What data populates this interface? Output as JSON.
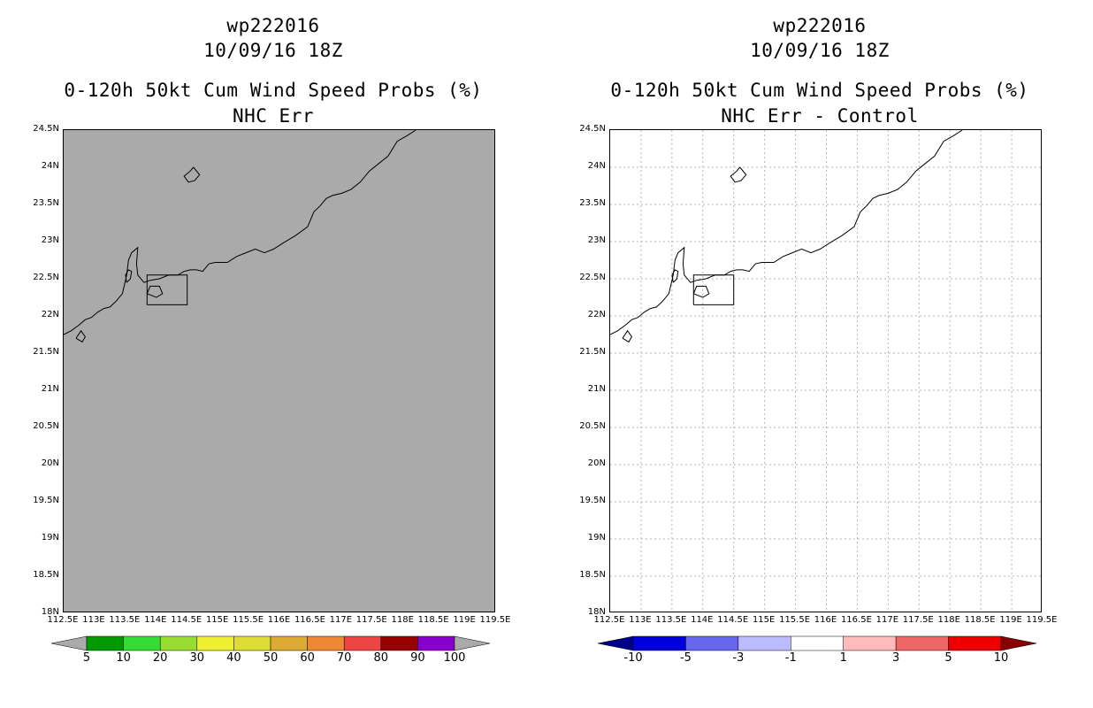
{
  "colors": {
    "gray_fill": "#aaaaaa",
    "grid": "#b5b5b5",
    "coast": "#000000"
  },
  "chart_data": [
    {
      "type": "heatmap",
      "title_lines": [
        "wp222016",
        "10/09/16 18Z"
      ],
      "subtitle_lines": [
        "0-120h 50kt Cum Wind Speed Probs (%)",
        "NHC Err"
      ],
      "xlim": [
        112.5,
        119.5
      ],
      "ylim": [
        18,
        24.5
      ],
      "x_tick_labels": [
        "112.5E",
        "113E",
        "113.5E",
        "114E",
        "114.5E",
        "115E",
        "115.5E",
        "116E",
        "116.5E",
        "117E",
        "117.5E",
        "118E",
        "118.5E",
        "119E",
        "119.5E"
      ],
      "y_tick_labels": [
        "24.5N",
        "24N",
        "23.5N",
        "23N",
        "22.5N",
        "22N",
        "21.5N",
        "21N",
        "20.5N",
        "20N",
        "19.5N",
        "19N",
        "18.5N",
        "18N"
      ],
      "field": "all values below 5% (uniform gray)",
      "colorbar": {
        "labels": [
          "5",
          "10",
          "20",
          "30",
          "40",
          "50",
          "60",
          "70",
          "80",
          "90",
          "100"
        ],
        "colors": [
          "#009900",
          "#33dd33",
          "#99dd33",
          "#eeee33",
          "#dddd33",
          "#ddaa33",
          "#ee8833",
          "#ee4444",
          "#990000",
          "#8800cc"
        ],
        "low_color": "#aaaaaa",
        "high_color": "#aaaaaa"
      }
    },
    {
      "type": "heatmap",
      "title_lines": [
        "wp222016",
        "10/09/16 18Z"
      ],
      "subtitle_lines": [
        "0-120h 50kt Cum Wind Speed Probs (%)",
        "NHC Err - Control"
      ],
      "xlim": [
        112.5,
        119.5
      ],
      "ylim": [
        18,
        24.5
      ],
      "x_tick_labels": [
        "112.5E",
        "113E",
        "113.5E",
        "114E",
        "114.5E",
        "115E",
        "115.5E",
        "116E",
        "116.5E",
        "117E",
        "117.5E",
        "118E",
        "118.5E",
        "119E",
        "119.5E"
      ],
      "y_tick_labels": [
        "24.5N",
        "24N",
        "23.5N",
        "23N",
        "22.5N",
        "22N",
        "21.5N",
        "21N",
        "20.5N",
        "20N",
        "19.5N",
        "19N",
        "18.5N",
        "18N"
      ],
      "field": "all differences between -1 and 1 (white)",
      "colorbar": {
        "labels": [
          "-10",
          "-5",
          "-3",
          "-1",
          "1",
          "3",
          "5",
          "10"
        ],
        "colors": [
          "#0000dd",
          "#6666ee",
          "#bbbbff",
          "#ffffff",
          "#ffbbbb",
          "#ee6666",
          "#ee0000"
        ],
        "low_color": "#000088",
        "high_color": "#880000"
      }
    }
  ]
}
